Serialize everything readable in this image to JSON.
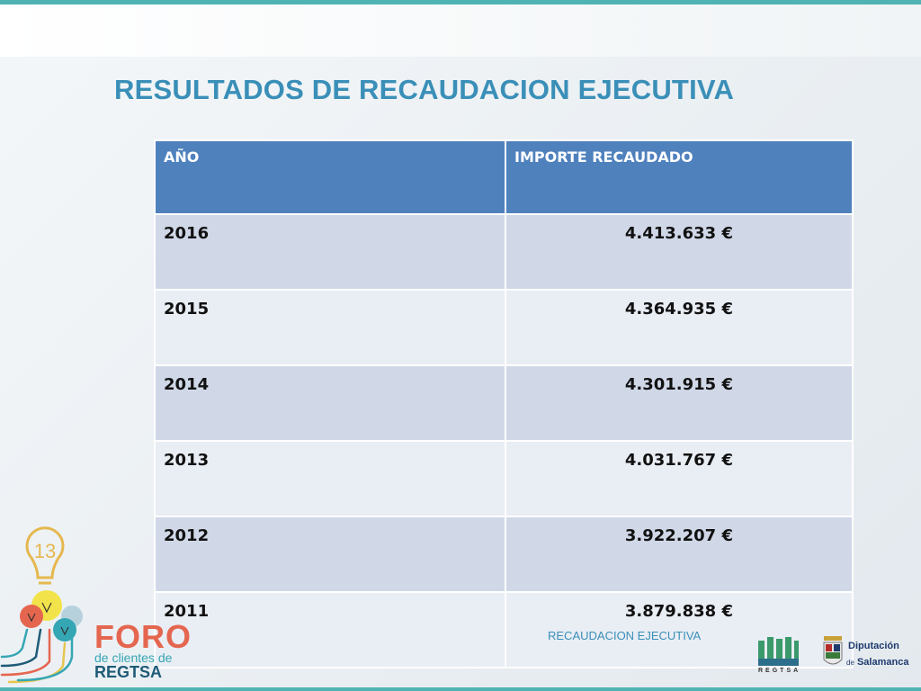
{
  "slide": {
    "title": "RESULTADOS DE RECAUDACION EJECUTIVA",
    "footer": "RECAUDACION EJECUTIVA"
  },
  "table": {
    "headers": [
      "AÑO",
      "IMPORTE RECAUDADO"
    ],
    "rows": [
      {
        "year": "2016",
        "amount": "4.413.633 €"
      },
      {
        "year": "2015",
        "amount": "4.364.935 €"
      },
      {
        "year": "2014",
        "amount": "4.301.915 €"
      },
      {
        "year": "2013",
        "amount": "4.031.767 €"
      },
      {
        "year": "2012",
        "amount": "3.922.207 €"
      },
      {
        "year": "2011",
        "amount": "3.879.838 €"
      }
    ]
  },
  "logos": {
    "foro": {
      "number": "13",
      "word": "FORO",
      "line1": "de clientes de",
      "line2": "REGTSA"
    },
    "regtsa": {
      "text": "REGTSA"
    },
    "diputacion": {
      "line1": "Diputación",
      "line2_prefix": "de",
      "line2": "Salamanca"
    }
  },
  "colors": {
    "accent_teal": "#4fb3b3",
    "title_blue": "#3a8fb8",
    "header_blue": "#4f81bd",
    "row_dark": "#d0d8e8",
    "row_light": "#e9edf4",
    "foro_red": "#e5664f"
  }
}
